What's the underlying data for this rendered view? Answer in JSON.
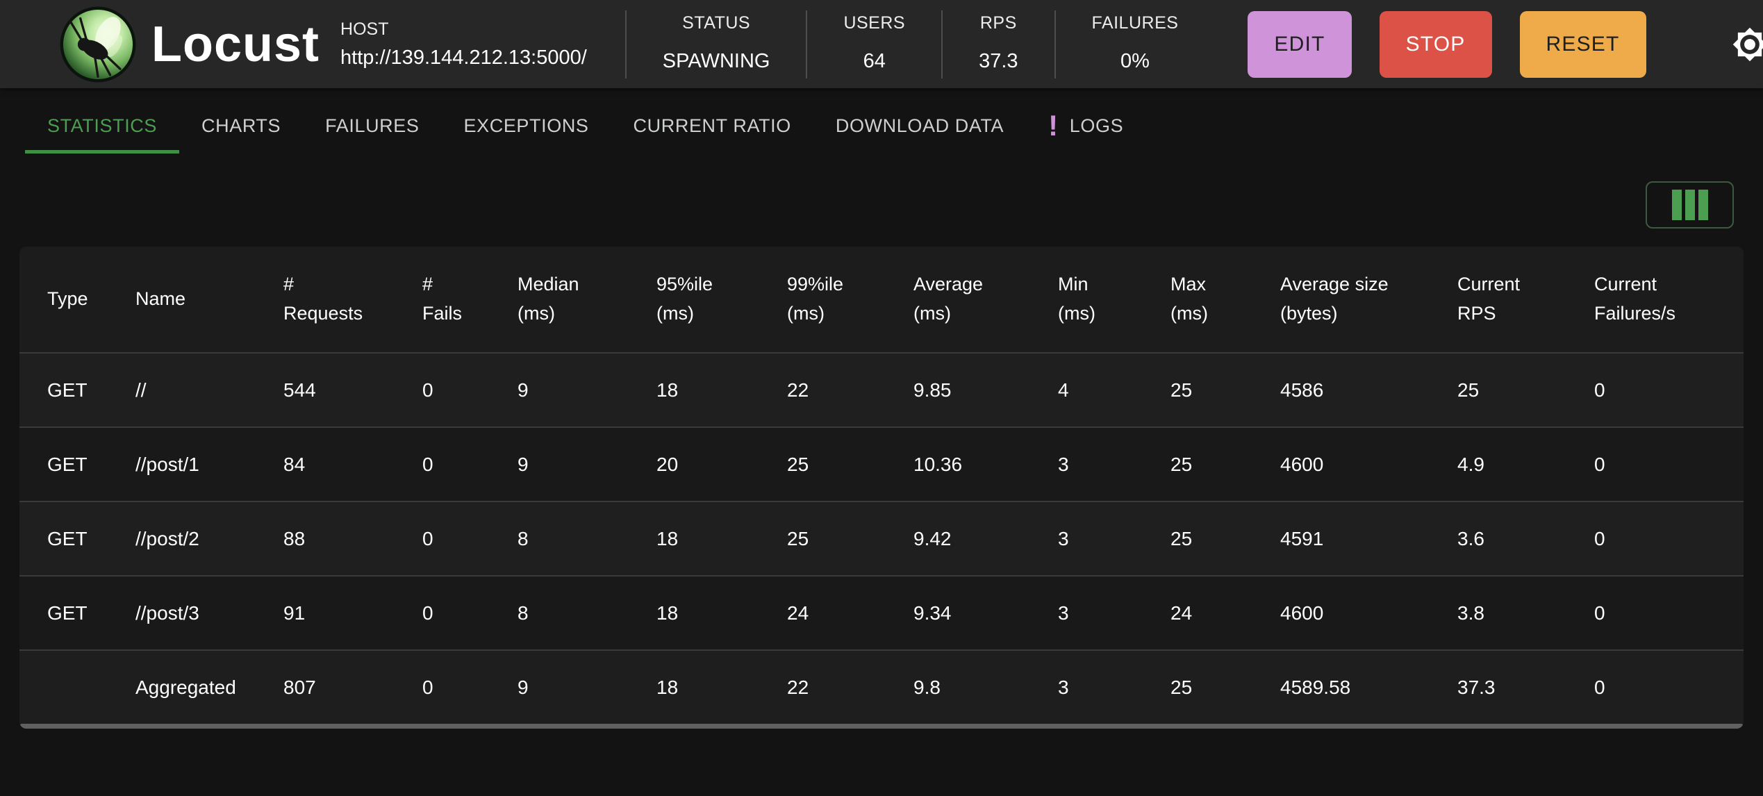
{
  "header": {
    "app_title": "Locust",
    "host_label": "HOST",
    "host_value": "http://139.144.212.13:5000/",
    "stats": [
      {
        "label": "STATUS",
        "value": "SPAWNING"
      },
      {
        "label": "USERS",
        "value": "64"
      },
      {
        "label": "RPS",
        "value": "37.3"
      },
      {
        "label": "FAILURES",
        "value": "0%"
      }
    ],
    "buttons": [
      {
        "label": "EDIT",
        "color": "#CE93D8"
      },
      {
        "label": "STOP",
        "color": "#DD5246"
      },
      {
        "label": "RESET",
        "color": "#EFAB49"
      }
    ]
  },
  "tabs": [
    {
      "label": "STATISTICS",
      "active": true
    },
    {
      "label": "CHARTS"
    },
    {
      "label": "FAILURES"
    },
    {
      "label": "EXCEPTIONS"
    },
    {
      "label": "CURRENT RATIO"
    },
    {
      "label": "DOWNLOAD DATA"
    },
    {
      "label": "LOGS",
      "badge": "!"
    }
  ],
  "table": {
    "headers": [
      "Type",
      "Name",
      "#\nRequests",
      "#\nFails",
      "Median\n(ms)",
      "95%ile\n(ms)",
      "99%ile\n(ms)",
      "Average\n(ms)",
      "Min\n(ms)",
      "Max\n(ms)",
      "Average size\n(bytes)",
      "Current\nRPS",
      "Current\nFailures/s"
    ],
    "rows": [
      [
        "GET",
        "//",
        "544",
        "0",
        "9",
        "18",
        "22",
        "9.85",
        "4",
        "25",
        "4586",
        "25",
        "0"
      ],
      [
        "GET",
        "//post/1",
        "84",
        "0",
        "9",
        "20",
        "25",
        "10.36",
        "3",
        "25",
        "4600",
        "4.9",
        "0"
      ],
      [
        "GET",
        "//post/2",
        "88",
        "0",
        "8",
        "18",
        "25",
        "9.42",
        "3",
        "25",
        "4591",
        "3.6",
        "0"
      ],
      [
        "GET",
        "//post/3",
        "91",
        "0",
        "8",
        "18",
        "24",
        "9.34",
        "3",
        "24",
        "4600",
        "3.8",
        "0"
      ],
      [
        "",
        "Aggregated",
        "807",
        "0",
        "9",
        "18",
        "22",
        "9.8",
        "3",
        "25",
        "4589.58",
        "37.3",
        "0"
      ]
    ]
  },
  "colors": {
    "accent_green": "#4C9E50",
    "tab_indicator": "#3F8F44",
    "edit_purple": "#CE93D8",
    "stop_red": "#DD5246",
    "reset_orange": "#EFAB49",
    "header_bg": "#272727",
    "page_bg": "#131313"
  }
}
